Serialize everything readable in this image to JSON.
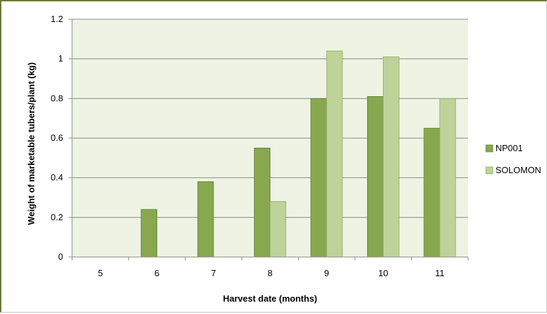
{
  "colors": {
    "plot_background": "#eef3e4",
    "gridline": "#8a8a8a",
    "axis": "#8a8a8a",
    "frame_accent": "#6b7a3a"
  },
  "chart_data": {
    "type": "bar",
    "categories": [
      "5",
      "6",
      "7",
      "8",
      "9",
      "10",
      "11"
    ],
    "series": [
      {
        "name": "NP001",
        "color": "#87a84f",
        "edge": "#5f7d2e",
        "values": [
          0,
          0.24,
          0.38,
          0.55,
          0.8,
          0.81,
          0.65
        ]
      },
      {
        "name": "SOLOMON",
        "color": "#bdd39a",
        "edge": "#8eab5c",
        "values": [
          0,
          0,
          0,
          0.28,
          1.04,
          1.01,
          0.8
        ]
      }
    ],
    "title": "",
    "xlabel": "Harvest date (months)",
    "ylabel": "Weight of marketable  tubers/plant (kg)",
    "ylim": [
      0,
      1.2
    ],
    "yticks": [
      "0",
      "0.2",
      "0.4",
      "0.6",
      "0.8",
      "1",
      "1.2"
    ],
    "grid": true,
    "legend_position": "right"
  }
}
